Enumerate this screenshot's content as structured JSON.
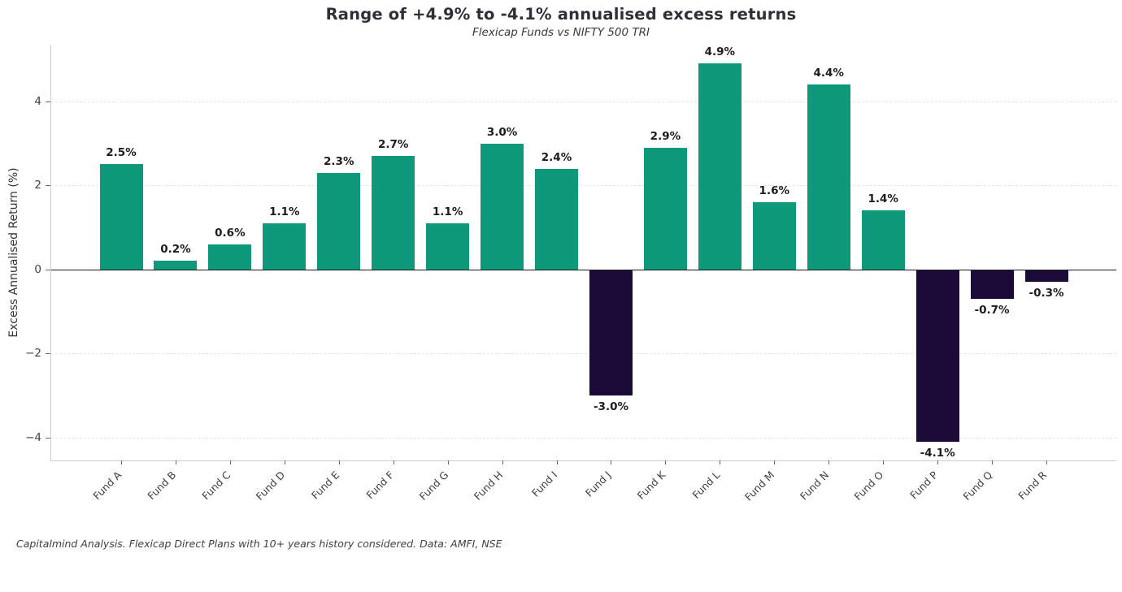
{
  "chart_data": {
    "type": "bar",
    "title": "Range of +4.9% to -4.1% annualised excess returns",
    "subtitle": "Flexicap Funds vs NIFTY 500 TRI",
    "ylabel": "Excess Annualised Return (%)",
    "footnote": "Capitalmind Analysis. Flexicap Direct Plans with 10+ years history considered. Data: AMFI, NSE",
    "categories": [
      "Fund A",
      "Fund B",
      "Fund C",
      "Fund D",
      "Fund E",
      "Fund F",
      "Fund G",
      "Fund H",
      "Fund I",
      "Fund J",
      "Fund K",
      "Fund L",
      "Fund M",
      "Fund N",
      "Fund O",
      "Fund P",
      "Fund Q",
      "Fund R"
    ],
    "values": [
      2.5,
      0.2,
      0.6,
      1.1,
      2.3,
      2.7,
      1.1,
      3.0,
      2.4,
      -3.0,
      2.9,
      4.9,
      1.6,
      4.4,
      1.4,
      -4.1,
      -0.7,
      -0.3
    ],
    "bar_labels": [
      "2.5%",
      "0.2%",
      "0.6%",
      "1.1%",
      "2.3%",
      "2.7%",
      "1.1%",
      "3.0%",
      "2.4%",
      "-3.0%",
      "2.9%",
      "4.9%",
      "1.6%",
      "4.4%",
      "1.4%",
      "-4.1%",
      "-0.7%",
      "-0.3%"
    ],
    "yticks": [
      4,
      2,
      0,
      -2,
      -4
    ],
    "ytick_labels": [
      "4",
      "2",
      "0",
      "−2",
      "−4"
    ],
    "ylim": [
      -4.55,
      5.35
    ],
    "grid": "horizontal-dashed",
    "legend_position": "none",
    "colors": {
      "positive_bar": "#0e9a7a",
      "negative_bar": "#1c0b38",
      "zero_line": "#1a1a1a",
      "grid_line": "#e3e3e3",
      "spine": "#cccccc",
      "title_text": "#2f2f38",
      "value_label_text": "#1c1c1c",
      "axis_text": "#404040"
    }
  }
}
